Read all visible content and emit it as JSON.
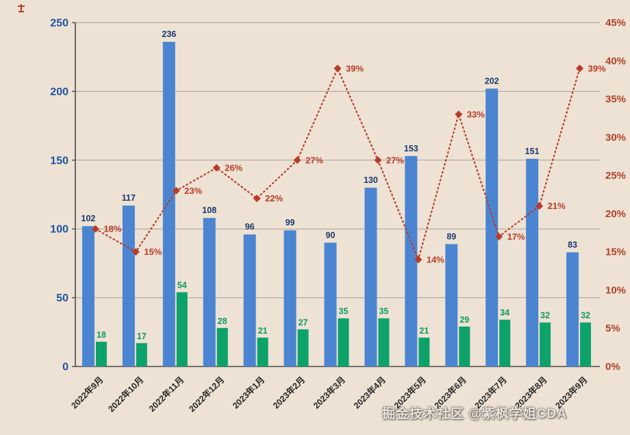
{
  "chart_data": {
    "type": "bar",
    "subtype": "grouped-bars-with-dotted-percentage-line",
    "title": "",
    "categories": [
      "2022年9月",
      "2022年10月",
      "2022年11月",
      "2022年12月",
      "2023年1月",
      "2023年2月",
      "2023年3月",
      "2023年4月",
      "2023年5月",
      "2023年6月",
      "2023年7月",
      "2023年8月",
      "2023年9月"
    ],
    "series": [
      {
        "name": "total-count-bar",
        "chart": "bar",
        "axis": "left",
        "color": "#4b85d1",
        "label_color": "#17396f",
        "values": [
          102,
          117,
          236,
          108,
          96,
          99,
          90,
          130,
          153,
          89,
          202,
          151,
          83
        ]
      },
      {
        "name": "subset-count-bar",
        "chart": "bar",
        "axis": "left",
        "color": "#0da26a",
        "label_color": "#0a9a60",
        "values": [
          18,
          17,
          54,
          28,
          21,
          27,
          35,
          35,
          21,
          29,
          34,
          32,
          32
        ]
      },
      {
        "name": "percentage-line",
        "chart": "line",
        "axis": "right",
        "marker": "diamond",
        "line_style": "dotted",
        "color": "#ba3a27",
        "unit": "%",
        "values": [
          18,
          15,
          23,
          26,
          22,
          27,
          39,
          27,
          14,
          33,
          17,
          21,
          39
        ]
      }
    ],
    "left_axis": {
      "min": 0,
      "max": 250,
      "step": 50,
      "ticks": [
        "0",
        "50",
        "100",
        "150",
        "200",
        "250"
      ],
      "color": "#1d54a7"
    },
    "right_axis": {
      "min": 0,
      "max": 45,
      "step": 5,
      "ticks": [
        "0%",
        "5%",
        "10%",
        "15%",
        "20%",
        "25%",
        "30%",
        "35%",
        "40%",
        "45%"
      ],
      "color": "#b2402c"
    },
    "grid": true,
    "gridline_color": "#a5a099",
    "axis_line_color": "#4a4a4a",
    "x_label_color": "#262626",
    "background": "#ede2d4",
    "legend": "none"
  },
  "watermark": {
    "text": "掘金技术社区 @紫枫学姐CDA"
  },
  "corner_mark": {
    "color": "#c0392b"
  }
}
